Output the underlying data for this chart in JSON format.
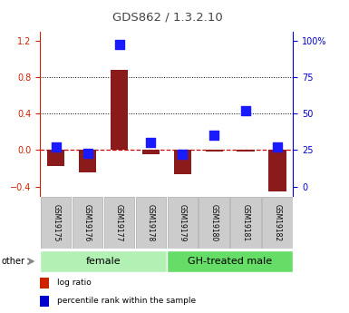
{
  "title": "GDS862 / 1.3.2.10",
  "samples": [
    "GSM19175",
    "GSM19176",
    "GSM19177",
    "GSM19178",
    "GSM19179",
    "GSM19180",
    "GSM19181",
    "GSM19182"
  ],
  "log_ratio": [
    -0.18,
    -0.25,
    0.88,
    -0.05,
    -0.27,
    -0.02,
    -0.02,
    -0.45
  ],
  "percentile_rank": [
    27,
    23,
    97,
    30,
    22,
    35,
    52,
    27
  ],
  "female_indices": [
    0,
    1,
    2,
    3
  ],
  "gh_indices": [
    4,
    5,
    6,
    7
  ],
  "female_label": "female",
  "gh_label": "GH-treated male",
  "female_color": "#b3f0b3",
  "gh_color": "#66dd66",
  "ylim": [
    -0.5,
    1.3
  ],
  "left_yticks": [
    -0.4,
    0.0,
    0.4,
    0.8,
    1.2
  ],
  "right_ytick_pcts": [
    0,
    25,
    50,
    75,
    100
  ],
  "bar_color": "#8B1A1A",
  "dot_color": "#1a1aff",
  "hline_color": "#cc0000",
  "dot_color_legend": "#0000cc",
  "bar_color_legend": "#cc2200",
  "grid_color": "#000000",
  "title_color": "#444444",
  "left_tick_color": "#cc2200",
  "right_tick_color": "#0000cc",
  "sample_box_color": "#cccccc",
  "sample_box_edge": "#aaaaaa",
  "other_arrow_color": "#888888",
  "legend_red": "#cc2200",
  "legend_blue": "#0000cc"
}
